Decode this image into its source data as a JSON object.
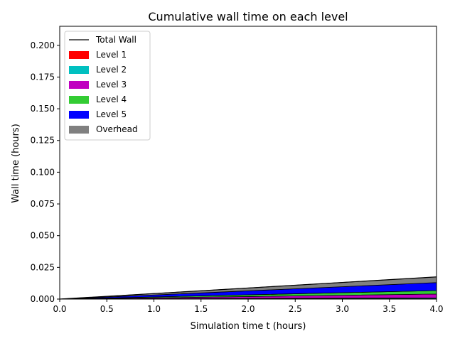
{
  "chart_data": {
    "type": "area",
    "title": "Cumulative wall time on each level",
    "xlabel": "Simulation time t (hours)",
    "ylabel": "Wall time (hours)",
    "xlim": [
      0,
      4
    ],
    "ylim": [
      0,
      0.215
    ],
    "xticks": [
      "0.0",
      "0.5",
      "1.0",
      "1.5",
      "2.0",
      "2.5",
      "3.0",
      "3.5",
      "4.0"
    ],
    "yticks": [
      "0.000",
      "0.025",
      "0.050",
      "0.075",
      "0.100",
      "0.125",
      "0.150",
      "0.175",
      "0.200"
    ],
    "legend_position": "top-left",
    "x": [
      0,
      4
    ],
    "stacked": true,
    "series": [
      {
        "name": "Level 1",
        "color": "#ff0000",
        "values": [
          0,
          0.0003
        ]
      },
      {
        "name": "Level 2",
        "color": "#00c0c0",
        "values": [
          0,
          0.0007
        ]
      },
      {
        "name": "Level 3",
        "color": "#c000c0",
        "values": [
          0,
          0.003
        ]
      },
      {
        "name": "Level 4",
        "color": "#33cc33",
        "values": [
          0,
          0.0027
        ]
      },
      {
        "name": "Level 5",
        "color": "#0000ff",
        "values": [
          0,
          0.0063
        ]
      },
      {
        "name": "Overhead",
        "color": "#808080",
        "values": [
          0,
          0.0045
        ]
      }
    ],
    "total": {
      "name": "Total Wall",
      "color": "#000000",
      "values": [
        0,
        0.0175
      ]
    }
  }
}
